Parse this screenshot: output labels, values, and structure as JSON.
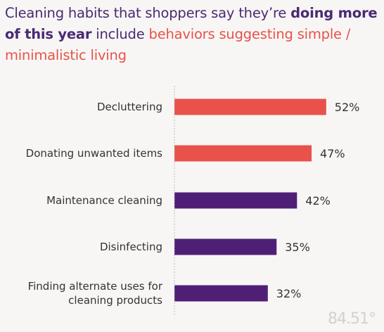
{
  "title": {
    "part1": "Cleaning habits that shoppers say they’re ",
    "part2": "doing more of this year",
    "part3": " include ",
    "part4": "behaviors suggesting simple / minimalistic living"
  },
  "logo": "84.51°",
  "chart_data": {
    "type": "bar",
    "orientation": "horizontal",
    "categories": [
      "Decluttering",
      "Donating unwanted items",
      "Maintenance cleaning",
      "Disinfecting",
      "Finding alternate uses for cleaning products"
    ],
    "category_lines": [
      [
        "Decluttering"
      ],
      [
        "Donating unwanted items"
      ],
      [
        "Maintenance cleaning"
      ],
      [
        "Disinfecting"
      ],
      [
        "Finding alternate uses for",
        "cleaning products"
      ]
    ],
    "values": [
      52,
      47,
      42,
      35,
      32
    ],
    "value_labels": [
      "52%",
      "47%",
      "42%",
      "35%",
      "32%"
    ],
    "bar_colors": [
      "#e8524a",
      "#e8524a",
      "#4f1f76",
      "#4f1f76",
      "#4f1f76"
    ],
    "xlim": [
      0,
      100
    ],
    "grid": false,
    "title": "Cleaning habits that shoppers say they’re doing more of this year include behaviors suggesting simple / minimalistic living"
  }
}
